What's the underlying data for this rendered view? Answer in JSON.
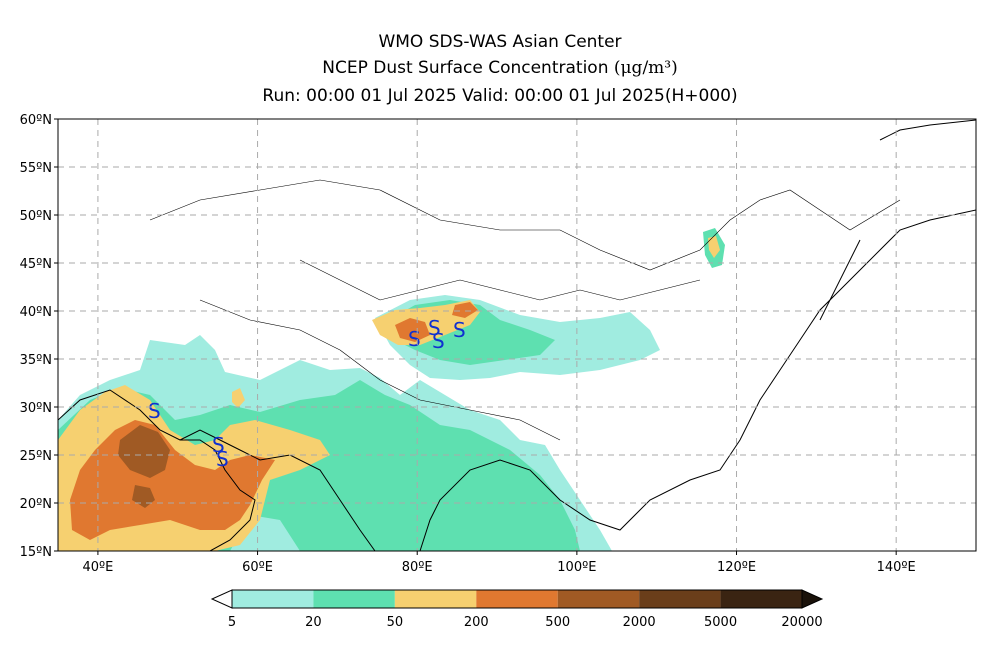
{
  "title": {
    "line1": "WMO SDS-WAS Asian Center",
    "line2_text": "NCEP Dust Surface Concentration",
    "line2_unit": "(μg/m³)",
    "line3": "Run: 00:00 01 Jul 2025     Valid: 00:00 01 Jul 2025(H+000)"
  },
  "map": {
    "lon_range": [
      35,
      150
    ],
    "lat_range": [
      15,
      60
    ],
    "lon_ticks": [
      "40ºE",
      "60ºE",
      "80ºE",
      "100ºE",
      "120ºE",
      "140ºE"
    ],
    "lat_ticks": [
      "15ºN",
      "20ºN",
      "25ºN",
      "30ºN",
      "35ºN",
      "40ºN",
      "45ºN",
      "50ºN",
      "55ºN",
      "60ºN"
    ],
    "grid": "dashed",
    "dust_storm_symbol": "S"
  },
  "colorbar": {
    "levels": [
      "5",
      "20",
      "50",
      "200",
      "500",
      "2000",
      "5000",
      "20000"
    ],
    "colors": [
      "#a0ece0",
      "#5ee0b0",
      "#f6d070",
      "#e07830",
      "#a05a24",
      "#6a3e1a",
      "#3a2412"
    ]
  }
}
